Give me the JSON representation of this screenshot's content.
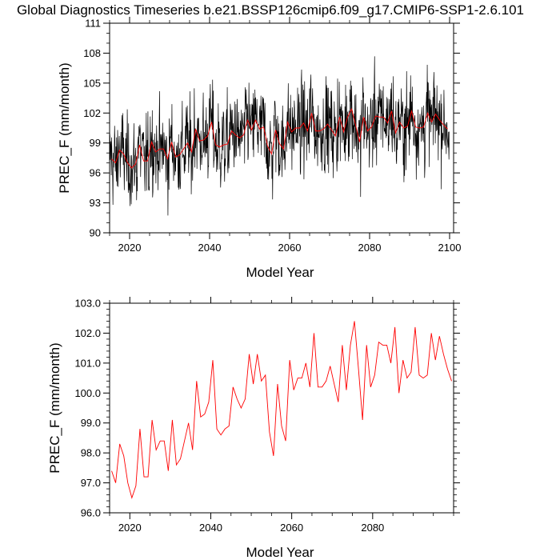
{
  "figure": {
    "title": "Global Diagnostics Timeseries b.e21.BSSP126cmip6.f09_g17.CMIP6-SSP1-2.6.101"
  },
  "chart_data": [
    {
      "type": "line",
      "xlabel": "Model Year",
      "ylabel": "PREC_F (mm/month)",
      "xlim": [
        2015,
        2101
      ],
      "ylim": [
        90,
        111
      ],
      "xticks": [
        "2020",
        "2040",
        "2060",
        "2080",
        "2100"
      ],
      "yticks": [
        "90",
        "93",
        "96",
        "99",
        "102",
        "105",
        "108",
        "111"
      ],
      "series": [
        {
          "role": "monthly",
          "color": "#000000",
          "values": "derived: monthly values oscillating around annual mean, range ~91-110.5"
        },
        {
          "role": "annual_mean",
          "color": "#ff0000",
          "values": "same as chart 2 annual means"
        }
      ]
    },
    {
      "type": "line",
      "xlabel": "Model Year",
      "ylabel": "PREC_F (mm/month)",
      "xlim": [
        2015,
        2100
      ],
      "ylim": [
        96.0,
        103.0
      ],
      "xticks": [
        "2020",
        "2040",
        "2060",
        "2080"
      ],
      "yticks": [
        "96.0",
        "97.0",
        "98.0",
        "99.0",
        "100.0",
        "101.0",
        "102.0",
        "103.0"
      ],
      "x": [
        2015,
        2016,
        2017,
        2018,
        2019,
        2020,
        2021,
        2022,
        2023,
        2024,
        2025,
        2026,
        2027,
        2028,
        2029,
        2030,
        2031,
        2032,
        2033,
        2034,
        2035,
        2036,
        2037,
        2038,
        2039,
        2040,
        2041,
        2042,
        2043,
        2044,
        2045,
        2046,
        2047,
        2048,
        2049,
        2050,
        2051,
        2052,
        2053,
        2054,
        2055,
        2056,
        2057,
        2058,
        2059,
        2060,
        2061,
        2062,
        2063,
        2064,
        2065,
        2066,
        2067,
        2068,
        2069,
        2070,
        2071,
        2072,
        2073,
        2074,
        2075,
        2076,
        2077,
        2078,
        2079,
        2080,
        2081,
        2082,
        2083,
        2084,
        2085,
        2086,
        2087,
        2088,
        2089,
        2090,
        2091,
        2092,
        2093,
        2094,
        2095,
        2096,
        2097,
        2098,
        2099
      ],
      "series": [
        {
          "color": "#ff0000",
          "values": [
            97.4,
            97.0,
            98.3,
            97.9,
            97.0,
            96.5,
            96.9,
            98.8,
            97.2,
            97.2,
            99.1,
            98.1,
            98.4,
            98.4,
            97.4,
            99.1,
            97.6,
            97.8,
            98.4,
            99.0,
            98.1,
            100.4,
            99.2,
            99.3,
            99.7,
            101.1,
            98.8,
            98.6,
            98.8,
            98.9,
            100.2,
            99.8,
            99.5,
            99.8,
            101.3,
            100.3,
            101.3,
            100.4,
            100.6,
            98.7,
            97.9,
            100.3,
            98.9,
            98.4,
            101.1,
            100.1,
            100.5,
            100.5,
            101.0,
            100.2,
            102.0,
            100.2,
            100.2,
            100.4,
            100.9,
            100.3,
            99.7,
            101.6,
            100.1,
            101.6,
            102.4,
            100.8,
            99.1,
            101.6,
            100.2,
            100.6,
            101.7,
            101.6,
            101.6,
            101.0,
            102.2,
            100.0,
            101.1,
            100.5,
            100.7,
            102.2,
            100.6,
            100.5,
            100.6,
            102.0,
            101.1,
            101.9,
            101.3,
            100.8,
            100.4
          ]
        }
      ]
    }
  ]
}
